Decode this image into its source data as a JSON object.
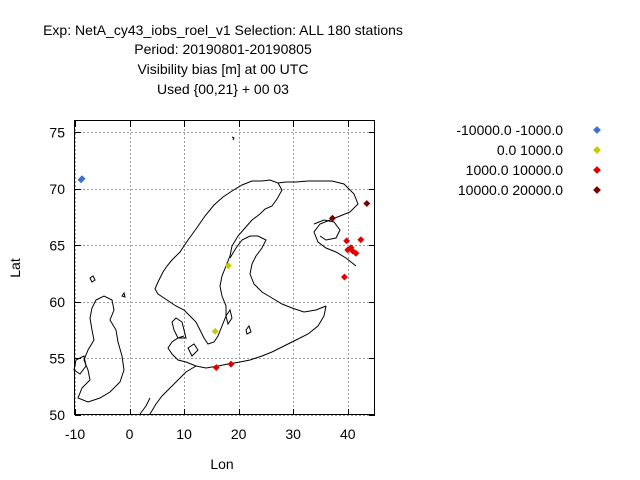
{
  "chart_data": {
    "type": "scatter",
    "title_lines": [
      "Exp: NetA_cy43_iobs_roel_v1   Selection: ALL    180 stations",
      "Period: 20190801-20190805",
      "Visibility bias [m] at  00 UTC",
      "Used {00,21} + 00 03"
    ],
    "xlabel": "Lon",
    "ylabel": "Lat",
    "xlim": [
      -10,
      45
    ],
    "ylim": [
      50,
      76
    ],
    "xticks": [
      -10,
      0,
      10,
      20,
      30,
      40
    ],
    "yticks": [
      50,
      55,
      60,
      65,
      70,
      75
    ],
    "grid": true,
    "legend_position": "top-right outside plot",
    "series": [
      {
        "name": "-10000.0 -1000.0",
        "color": "#3a6fd8",
        "points": [
          [
            -8.7,
            70.9
          ],
          [
            -8.9,
            70.8
          ]
        ]
      },
      {
        "name": "0.0 1000.0",
        "color": "#c8c800",
        "points": [
          [
            18.1,
            63.2
          ],
          [
            15.7,
            57.4
          ]
        ]
      },
      {
        "name": "1000.0 10000.0",
        "color": "#e00000",
        "points": [
          [
            39.4,
            62.2
          ],
          [
            40.0,
            64.6
          ],
          [
            40.6,
            64.8
          ],
          [
            40.9,
            64.5
          ],
          [
            41.5,
            64.3
          ],
          [
            39.8,
            65.4
          ],
          [
            42.4,
            65.5
          ],
          [
            15.9,
            54.2
          ],
          [
            18.6,
            54.5
          ]
        ]
      },
      {
        "name": "10000.0 20000.0",
        "color": "#7a0000",
        "points": [
          [
            37.2,
            67.4
          ],
          [
            43.5,
            68.7
          ]
        ]
      }
    ]
  }
}
